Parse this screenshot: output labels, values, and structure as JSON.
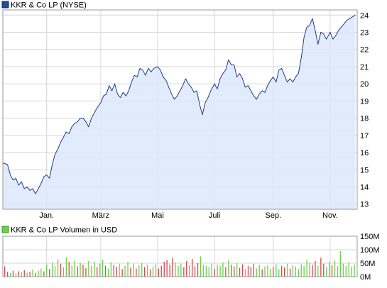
{
  "colors": {
    "price_line": "#1a3c8c",
    "price_fill": "#dde8fa",
    "price_legend": "#1f4e9c",
    "grid": "#d6d6d6",
    "frame": "#9a9a9a",
    "axis_text": "#000000",
    "volume_up": "#6ccf4a",
    "volume_down": "#d9484b",
    "volume_legend": "#6ccf4a"
  },
  "chart_data": [
    {
      "type": "line",
      "title": "KKR & Co LP (NYSE)",
      "legend_placement": "top-left",
      "xlabel": "",
      "ylabel": "",
      "x_ticks": [
        "Jan.",
        "März",
        "Mai",
        "Juli",
        "Sep.",
        "Nov."
      ],
      "x_tick_days": [
        47,
        105,
        166,
        227,
        290,
        351
      ],
      "x_range_days": [
        0,
        380
      ],
      "y_ticks": [
        13,
        14,
        15,
        16,
        17,
        18,
        19,
        20,
        21,
        22,
        23,
        24
      ],
      "ylim": [
        12.7,
        24.3
      ],
      "grid": true,
      "fill": "area",
      "series": [
        {
          "name": "KKR & Co LP (NYSE)",
          "points": [
            [
              0,
              15.4
            ],
            [
              5,
              15.3
            ],
            [
              8,
              14.7
            ],
            [
              11,
              14.4
            ],
            [
              14,
              14.5
            ],
            [
              17,
              14.1
            ],
            [
              20,
              14.3
            ],
            [
              23,
              13.9
            ],
            [
              26,
              14.0
            ],
            [
              29,
              13.8
            ],
            [
              32,
              13.9
            ],
            [
              35,
              13.6
            ],
            [
              38,
              13.9
            ],
            [
              41,
              14.2
            ],
            [
              44,
              14.6
            ],
            [
              47,
              14.7
            ],
            [
              50,
              14.5
            ],
            [
              53,
              15.3
            ],
            [
              56,
              15.9
            ],
            [
              59,
              16.2
            ],
            [
              62,
              16.6
            ],
            [
              65,
              16.9
            ],
            [
              68,
              17.2
            ],
            [
              71,
              17.1
            ],
            [
              74,
              17.5
            ],
            [
              77,
              17.7
            ],
            [
              80,
              17.8
            ],
            [
              83,
              18.0
            ],
            [
              86,
              18.0
            ],
            [
              89,
              17.8
            ],
            [
              92,
              17.5
            ],
            [
              95,
              18.0
            ],
            [
              98,
              18.3
            ],
            [
              101,
              18.6
            ],
            [
              105,
              18.9
            ],
            [
              108,
              19.3
            ],
            [
              111,
              19.4
            ],
            [
              114,
              19.9
            ],
            [
              117,
              19.6
            ],
            [
              120,
              20.0
            ],
            [
              123,
              19.4
            ],
            [
              126,
              19.2
            ],
            [
              129,
              19.5
            ],
            [
              132,
              19.3
            ],
            [
              135,
              19.6
            ],
            [
              138,
              20.1
            ],
            [
              141,
              20.5
            ],
            [
              144,
              20.4
            ],
            [
              147,
              20.9
            ],
            [
              150,
              20.8
            ],
            [
              153,
              20.5
            ],
            [
              156,
              20.9
            ],
            [
              159,
              20.7
            ],
            [
              162,
              20.9
            ],
            [
              166,
              21.0
            ],
            [
              169,
              20.8
            ],
            [
              172,
              20.4
            ],
            [
              175,
              20.2
            ],
            [
              178,
              19.8
            ],
            [
              181,
              19.4
            ],
            [
              184,
              19.1
            ],
            [
              187,
              19.3
            ],
            [
              190,
              19.6
            ],
            [
              193,
              19.9
            ],
            [
              196,
              20.3
            ],
            [
              199,
              20.0
            ],
            [
              202,
              19.8
            ],
            [
              205,
              19.5
            ],
            [
              208,
              19.6
            ],
            [
              211,
              18.8
            ],
            [
              214,
              18.2
            ],
            [
              217,
              18.9
            ],
            [
              220,
              19.2
            ],
            [
              223,
              19.6
            ],
            [
              227,
              20.0
            ],
            [
              230,
              19.7
            ],
            [
              233,
              20.3
            ],
            [
              236,
              20.6
            ],
            [
              239,
              20.8
            ],
            [
              242,
              21.4
            ],
            [
              245,
              21.1
            ],
            [
              248,
              21.1
            ],
            [
              251,
              20.4
            ],
            [
              254,
              20.6
            ],
            [
              257,
              20.3
            ],
            [
              260,
              19.8
            ],
            [
              263,
              19.9
            ],
            [
              266,
              19.6
            ],
            [
              269,
              19.3
            ],
            [
              272,
              19.1
            ],
            [
              275,
              19.4
            ],
            [
              278,
              19.6
            ],
            [
              281,
              19.5
            ],
            [
              284,
              19.9
            ],
            [
              287,
              20.2
            ],
            [
              290,
              20.4
            ],
            [
              293,
              20.1
            ],
            [
              296,
              20.8
            ],
            [
              299,
              20.9
            ],
            [
              302,
              20.5
            ],
            [
              305,
              20.1
            ],
            [
              308,
              20.3
            ],
            [
              311,
              20.1
            ],
            [
              314,
              20.4
            ],
            [
              317,
              20.6
            ],
            [
              320,
              21.5
            ],
            [
              323,
              22.7
            ],
            [
              326,
              23.3
            ],
            [
              329,
              23.4
            ],
            [
              332,
              23.8
            ],
            [
              335,
              23.1
            ],
            [
              338,
              22.3
            ],
            [
              341,
              23.0
            ],
            [
              344,
              22.9
            ],
            [
              347,
              22.6
            ],
            [
              351,
              23.0
            ],
            [
              354,
              22.6
            ],
            [
              357,
              22.8
            ],
            [
              360,
              23.1
            ],
            [
              363,
              23.3
            ],
            [
              366,
              23.5
            ],
            [
              369,
              23.7
            ],
            [
              372,
              23.8
            ],
            [
              375,
              23.9
            ],
            [
              378,
              24.0
            ]
          ]
        }
      ]
    },
    {
      "type": "bar",
      "title": "KKR & Co LP Volumen in USD",
      "legend_placement": "top-left",
      "xlabel": "",
      "ylabel": "",
      "y_ticks": [
        0,
        50,
        100,
        150
      ],
      "y_tick_labels": [
        "0M",
        "50M",
        "100M",
        "150M"
      ],
      "ylim": [
        0,
        150
      ],
      "x_range_days": [
        0,
        380
      ],
      "grid": true,
      "series": [
        {
          "name": "KKR & Co LP Volumen in USD",
          "unit": "M USD",
          "days": [
            2,
            5,
            8,
            11,
            14,
            17,
            20,
            23,
            26,
            29,
            32,
            35,
            38,
            41,
            44,
            47,
            50,
            53,
            56,
            59,
            62,
            65,
            68,
            71,
            74,
            77,
            80,
            83,
            86,
            89,
            92,
            95,
            98,
            101,
            104,
            107,
            110,
            113,
            116,
            119,
            122,
            125,
            128,
            131,
            134,
            137,
            140,
            143,
            146,
            149,
            152,
            155,
            158,
            161,
            164,
            167,
            170,
            173,
            176,
            179,
            182,
            185,
            188,
            191,
            194,
            197,
            200,
            203,
            206,
            209,
            212,
            215,
            218,
            221,
            224,
            227,
            230,
            233,
            236,
            239,
            242,
            245,
            248,
            251,
            254,
            257,
            260,
            263,
            266,
            269,
            272,
            275,
            278,
            281,
            284,
            287,
            290,
            293,
            296,
            299,
            302,
            305,
            308,
            311,
            314,
            317,
            320,
            323,
            326,
            329,
            332,
            335,
            338,
            341,
            344,
            347,
            350,
            353,
            356,
            359,
            362,
            365,
            368,
            371,
            374,
            377
          ],
          "values": [
            38,
            18,
            14,
            22,
            12,
            20,
            16,
            24,
            15,
            18,
            26,
            14,
            22,
            30,
            20,
            45,
            28,
            52,
            40,
            65,
            48,
            35,
            72,
            55,
            42,
            60,
            38,
            50,
            45,
            32,
            58,
            40,
            55,
            35,
            48,
            62,
            40,
            30,
            52,
            44,
            36,
            48,
            28,
            40,
            55,
            34,
            46,
            30,
            42,
            50,
            36,
            44,
            28,
            38,
            46,
            30,
            40,
            55,
            62,
            45,
            70,
            52,
            40,
            48,
            35,
            58,
            42,
            66,
            38,
            50,
            75,
            44,
            40,
            36,
            48,
            30,
            45,
            40,
            52,
            35,
            60,
            44,
            38,
            50,
            33,
            46,
            28,
            40,
            36,
            48,
            30,
            44,
            26,
            38,
            42,
            30,
            36,
            46,
            28,
            40,
            34,
            48,
            30,
            42,
            38,
            28,
            46,
            40,
            62,
            52,
            44,
            58,
            40,
            70,
            48,
            36,
            55,
            42,
            60,
            40,
            95,
            48,
            40,
            52,
            38,
            45
          ],
          "direction": [
            "down",
            "down",
            "up",
            "down",
            "up",
            "down",
            "up",
            "down",
            "up",
            "down",
            "up",
            "down",
            "up",
            "up",
            "down",
            "up",
            "down",
            "up",
            "up",
            "up",
            "down",
            "up",
            "up",
            "down",
            "up",
            "up",
            "down",
            "up",
            "down",
            "down",
            "up",
            "up",
            "up",
            "down",
            "up",
            "up",
            "down",
            "up",
            "up",
            "down",
            "down",
            "up",
            "down",
            "up",
            "up",
            "down",
            "up",
            "down",
            "up",
            "up",
            "down",
            "up",
            "down",
            "up",
            "up",
            "down",
            "down",
            "down",
            "down",
            "down",
            "down",
            "up",
            "up",
            "up",
            "down",
            "down",
            "up",
            "down",
            "down",
            "down",
            "up",
            "up",
            "up",
            "up",
            "up",
            "down",
            "up",
            "up",
            "up",
            "down",
            "up",
            "down",
            "down",
            "up",
            "down",
            "down",
            "up",
            "down",
            "down",
            "down",
            "up",
            "up",
            "down",
            "up",
            "up",
            "up",
            "down",
            "up",
            "up",
            "down",
            "down",
            "up",
            "down",
            "up",
            "up",
            "up",
            "up",
            "up",
            "up",
            "up",
            "down",
            "down",
            "up",
            "down",
            "down",
            "up",
            "up",
            "down",
            "up",
            "up",
            "up",
            "up",
            "up",
            "up",
            "up",
            "up"
          ]
        }
      ]
    }
  ]
}
